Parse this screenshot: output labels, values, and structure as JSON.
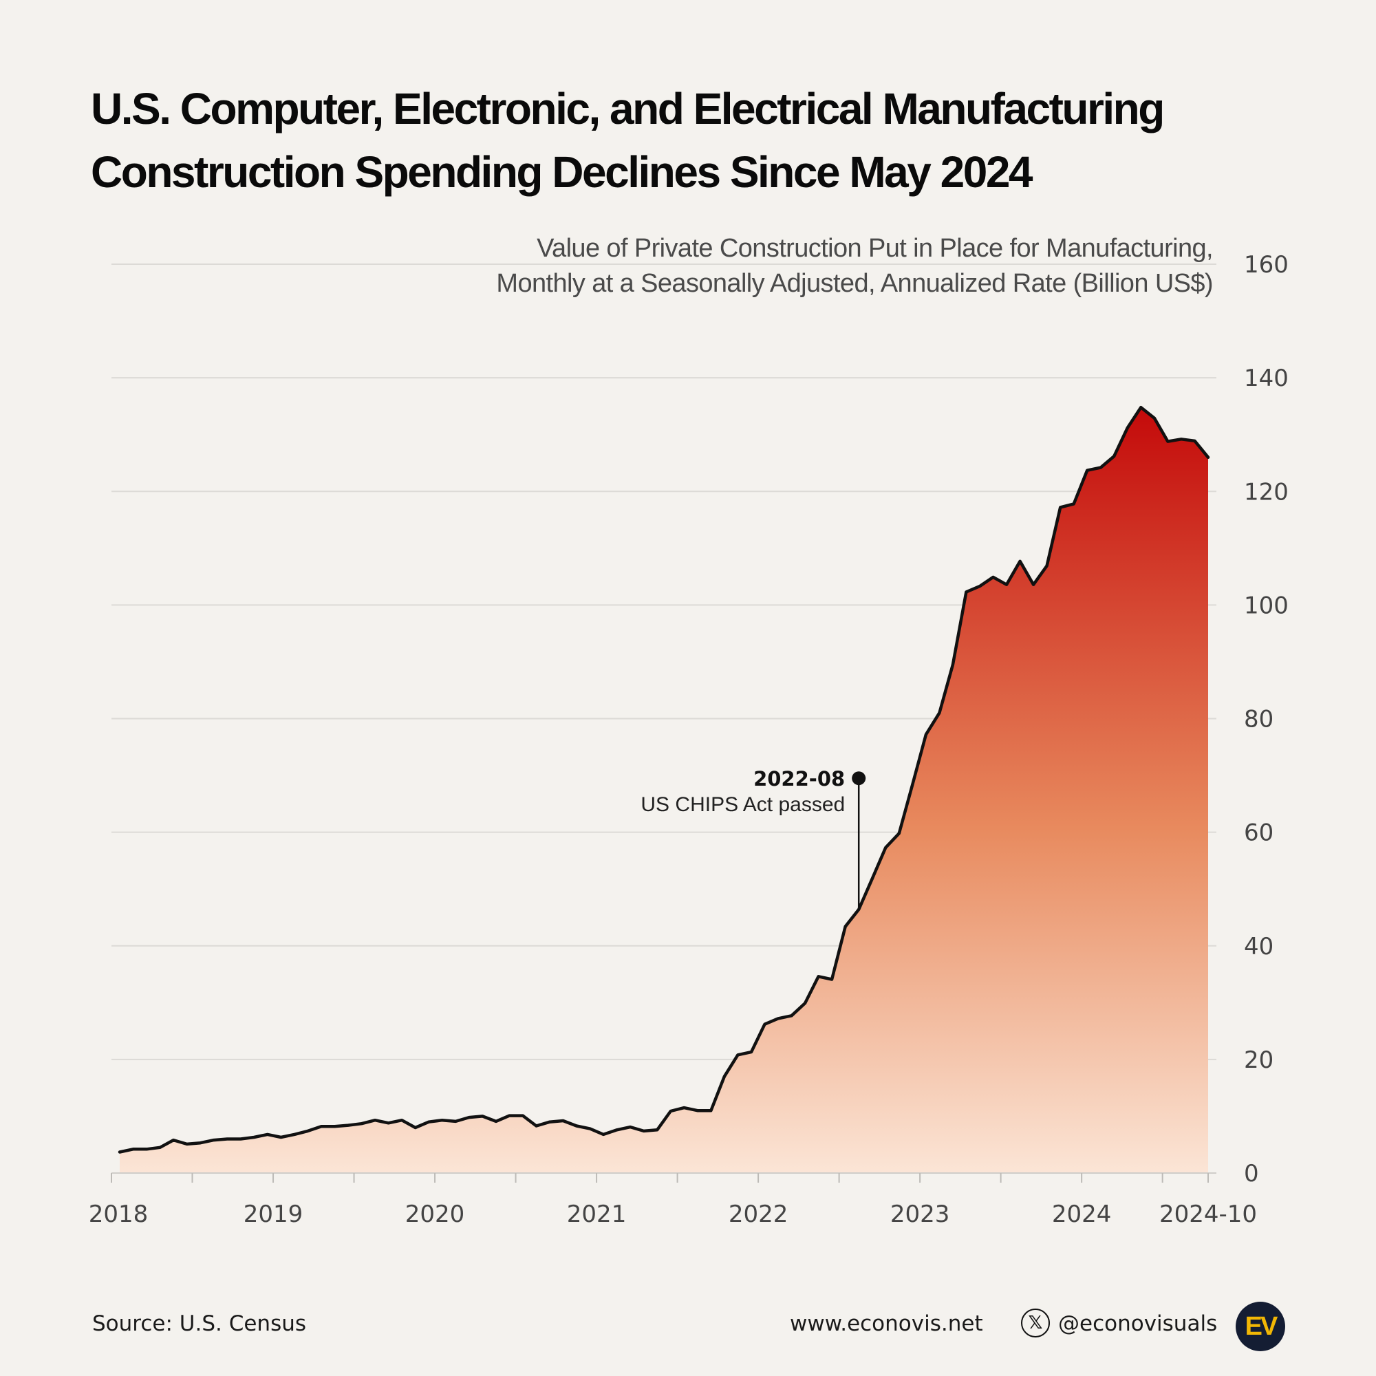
{
  "title_lines": [
    "U.S. Computer, Electronic, and Electrical Manufacturing",
    "Construction Spending Declines Since May 2024"
  ],
  "footer": {
    "source": "Source: U.S. Census",
    "website": "www.econovis.net",
    "social_icon": "x-logo-icon",
    "social_handle": "@econovisuals",
    "brand_logo_text": "EV"
  },
  "colors": {
    "background": "#f4f2ee",
    "line": "#111111",
    "fill_top": "#c40a0a",
    "fill_mid": "#e88a5e",
    "fill_bottom": "#fbe5d6",
    "grid": "#dcdad6"
  },
  "chart_data": {
    "type": "area",
    "subtitle_lines": [
      "Value of Private Construction Put in Place for Manufacturing,",
      "Monthly at a Seasonally Adjusted, Annualized Rate (Billion US$)"
    ],
    "xlabel": "",
    "ylabel": "",
    "ylim": [
      0,
      160
    ],
    "y_ticks": [
      0,
      20,
      40,
      60,
      80,
      100,
      120,
      140,
      160
    ],
    "y_axis_side": "right",
    "grid": true,
    "x_tick_labels": [
      "2018",
      "2019",
      "2020",
      "2021",
      "2022",
      "2023",
      "2024",
      "2024-10"
    ],
    "x_start": "2018-01",
    "x_end": "2024-10",
    "series": [
      {
        "x": [
          "2018-01",
          "2018-02",
          "2018-03",
          "2018-04",
          "2018-05",
          "2018-06",
          "2018-07",
          "2018-08",
          "2018-09",
          "2018-10",
          "2018-11",
          "2018-12",
          "2019-01",
          "2019-02",
          "2019-03",
          "2019-04",
          "2019-05",
          "2019-06",
          "2019-07",
          "2019-08",
          "2019-09",
          "2019-10",
          "2019-11",
          "2019-12",
          "2020-01",
          "2020-02",
          "2020-03",
          "2020-04",
          "2020-05",
          "2020-06",
          "2020-07",
          "2020-08",
          "2020-09",
          "2020-10",
          "2020-11",
          "2020-12",
          "2021-01",
          "2021-02",
          "2021-03",
          "2021-04",
          "2021-05",
          "2021-06",
          "2021-07",
          "2021-08",
          "2021-09",
          "2021-10",
          "2021-11",
          "2021-12",
          "2022-01",
          "2022-02",
          "2022-03",
          "2022-04",
          "2022-05",
          "2022-06",
          "2022-07",
          "2022-08",
          "2022-09",
          "2022-10",
          "2022-11",
          "2022-12",
          "2023-01",
          "2023-02",
          "2023-03",
          "2023-04",
          "2023-05",
          "2023-06",
          "2023-07",
          "2023-08",
          "2023-09",
          "2023-10",
          "2023-11",
          "2023-12",
          "2024-01",
          "2024-02",
          "2024-03",
          "2024-04",
          "2024-05",
          "2024-06",
          "2024-07",
          "2024-08",
          "2024-09",
          "2024-10"
        ],
        "values": [
          3.7,
          4.2,
          4.2,
          4.5,
          5.8,
          5.1,
          5.3,
          5.8,
          6.0,
          6.0,
          6.3,
          6.8,
          6.3,
          6.8,
          7.4,
          8.2,
          8.2,
          8.4,
          8.7,
          9.3,
          8.8,
          9.3,
          8.0,
          9.0,
          9.3,
          9.1,
          9.8,
          10.0,
          9.1,
          10.1,
          10.1,
          8.3,
          9.0,
          9.2,
          8.3,
          7.8,
          6.8,
          7.6,
          8.1,
          7.4,
          7.6,
          10.9,
          11.5,
          11.0,
          11.0,
          17.0,
          20.8,
          21.3,
          26.2,
          27.2,
          27.7,
          29.9,
          34.6,
          34.1,
          43.4,
          46.4,
          51.8,
          57.3,
          59.8,
          68.4,
          77.2,
          81.0,
          89.5,
          102.3,
          103.3,
          104.9,
          103.6,
          107.7,
          103.6,
          106.9,
          117.2,
          117.8,
          123.7,
          124.2,
          126.2,
          131.2,
          134.8,
          132.9,
          128.8,
          129.2,
          128.9,
          126.0
        ]
      }
    ],
    "annotation": {
      "x": "2022-08",
      "value": 46.4,
      "marker_value": 69.5,
      "date_label": "2022-08",
      "text": "US CHIPS Act passed"
    }
  }
}
